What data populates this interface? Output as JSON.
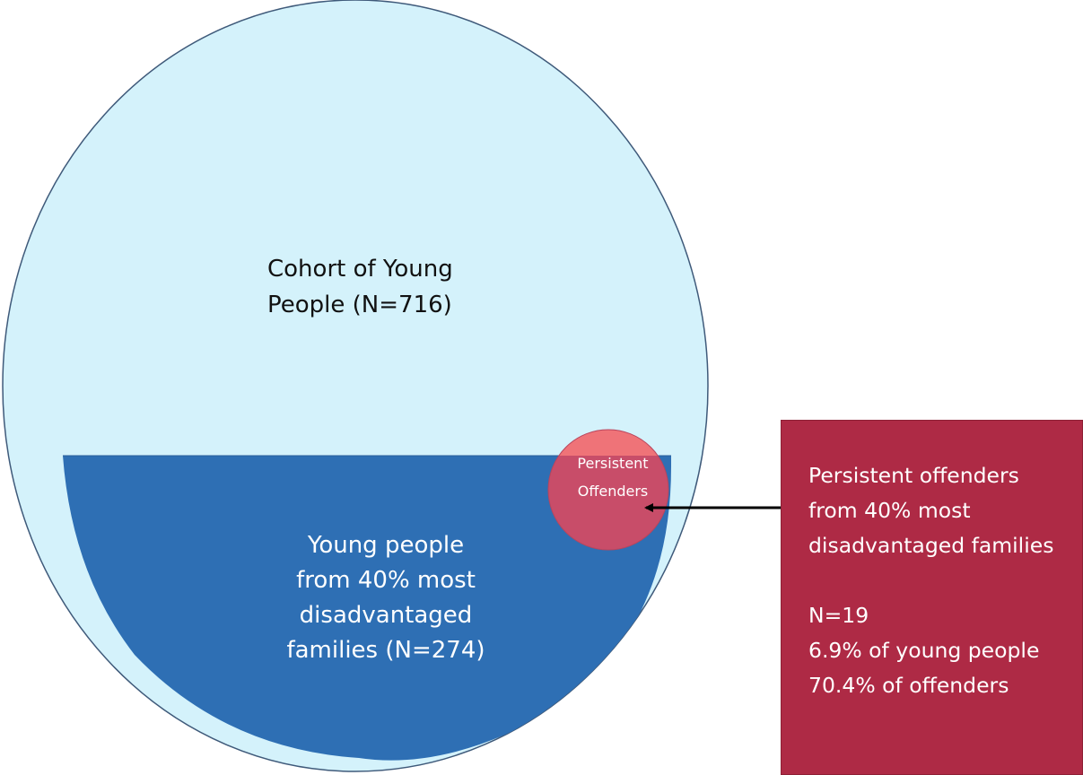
{
  "colors": {
    "cohort_fill": "#d4f2fb",
    "cohort_stroke": "#3f5a7a",
    "disadvantaged_fill": "#2e6fb4",
    "offenders_fill": "#c84d69",
    "offenders_top_fill": "#ef7378",
    "box_fill": "#ae2a45",
    "arrow": "#000000"
  },
  "cohort": {
    "label_line1": "Cohort of Young",
    "label_line2": "People (N=716)"
  },
  "disadvantaged": {
    "label_line1": "Young people",
    "label_line2": "from 40% most",
    "label_line3": "disadvantaged",
    "label_line4": "families (N=274)"
  },
  "offenders": {
    "label_line1": "Persistent",
    "label_line2": "Offenders"
  },
  "info_box": {
    "line1": "Persistent offenders",
    "line2": "from 40% most",
    "line3": "disadvantaged families",
    "line4": "N=19",
    "line5": "6.9% of young people",
    "line6": "70.4% of offenders"
  }
}
